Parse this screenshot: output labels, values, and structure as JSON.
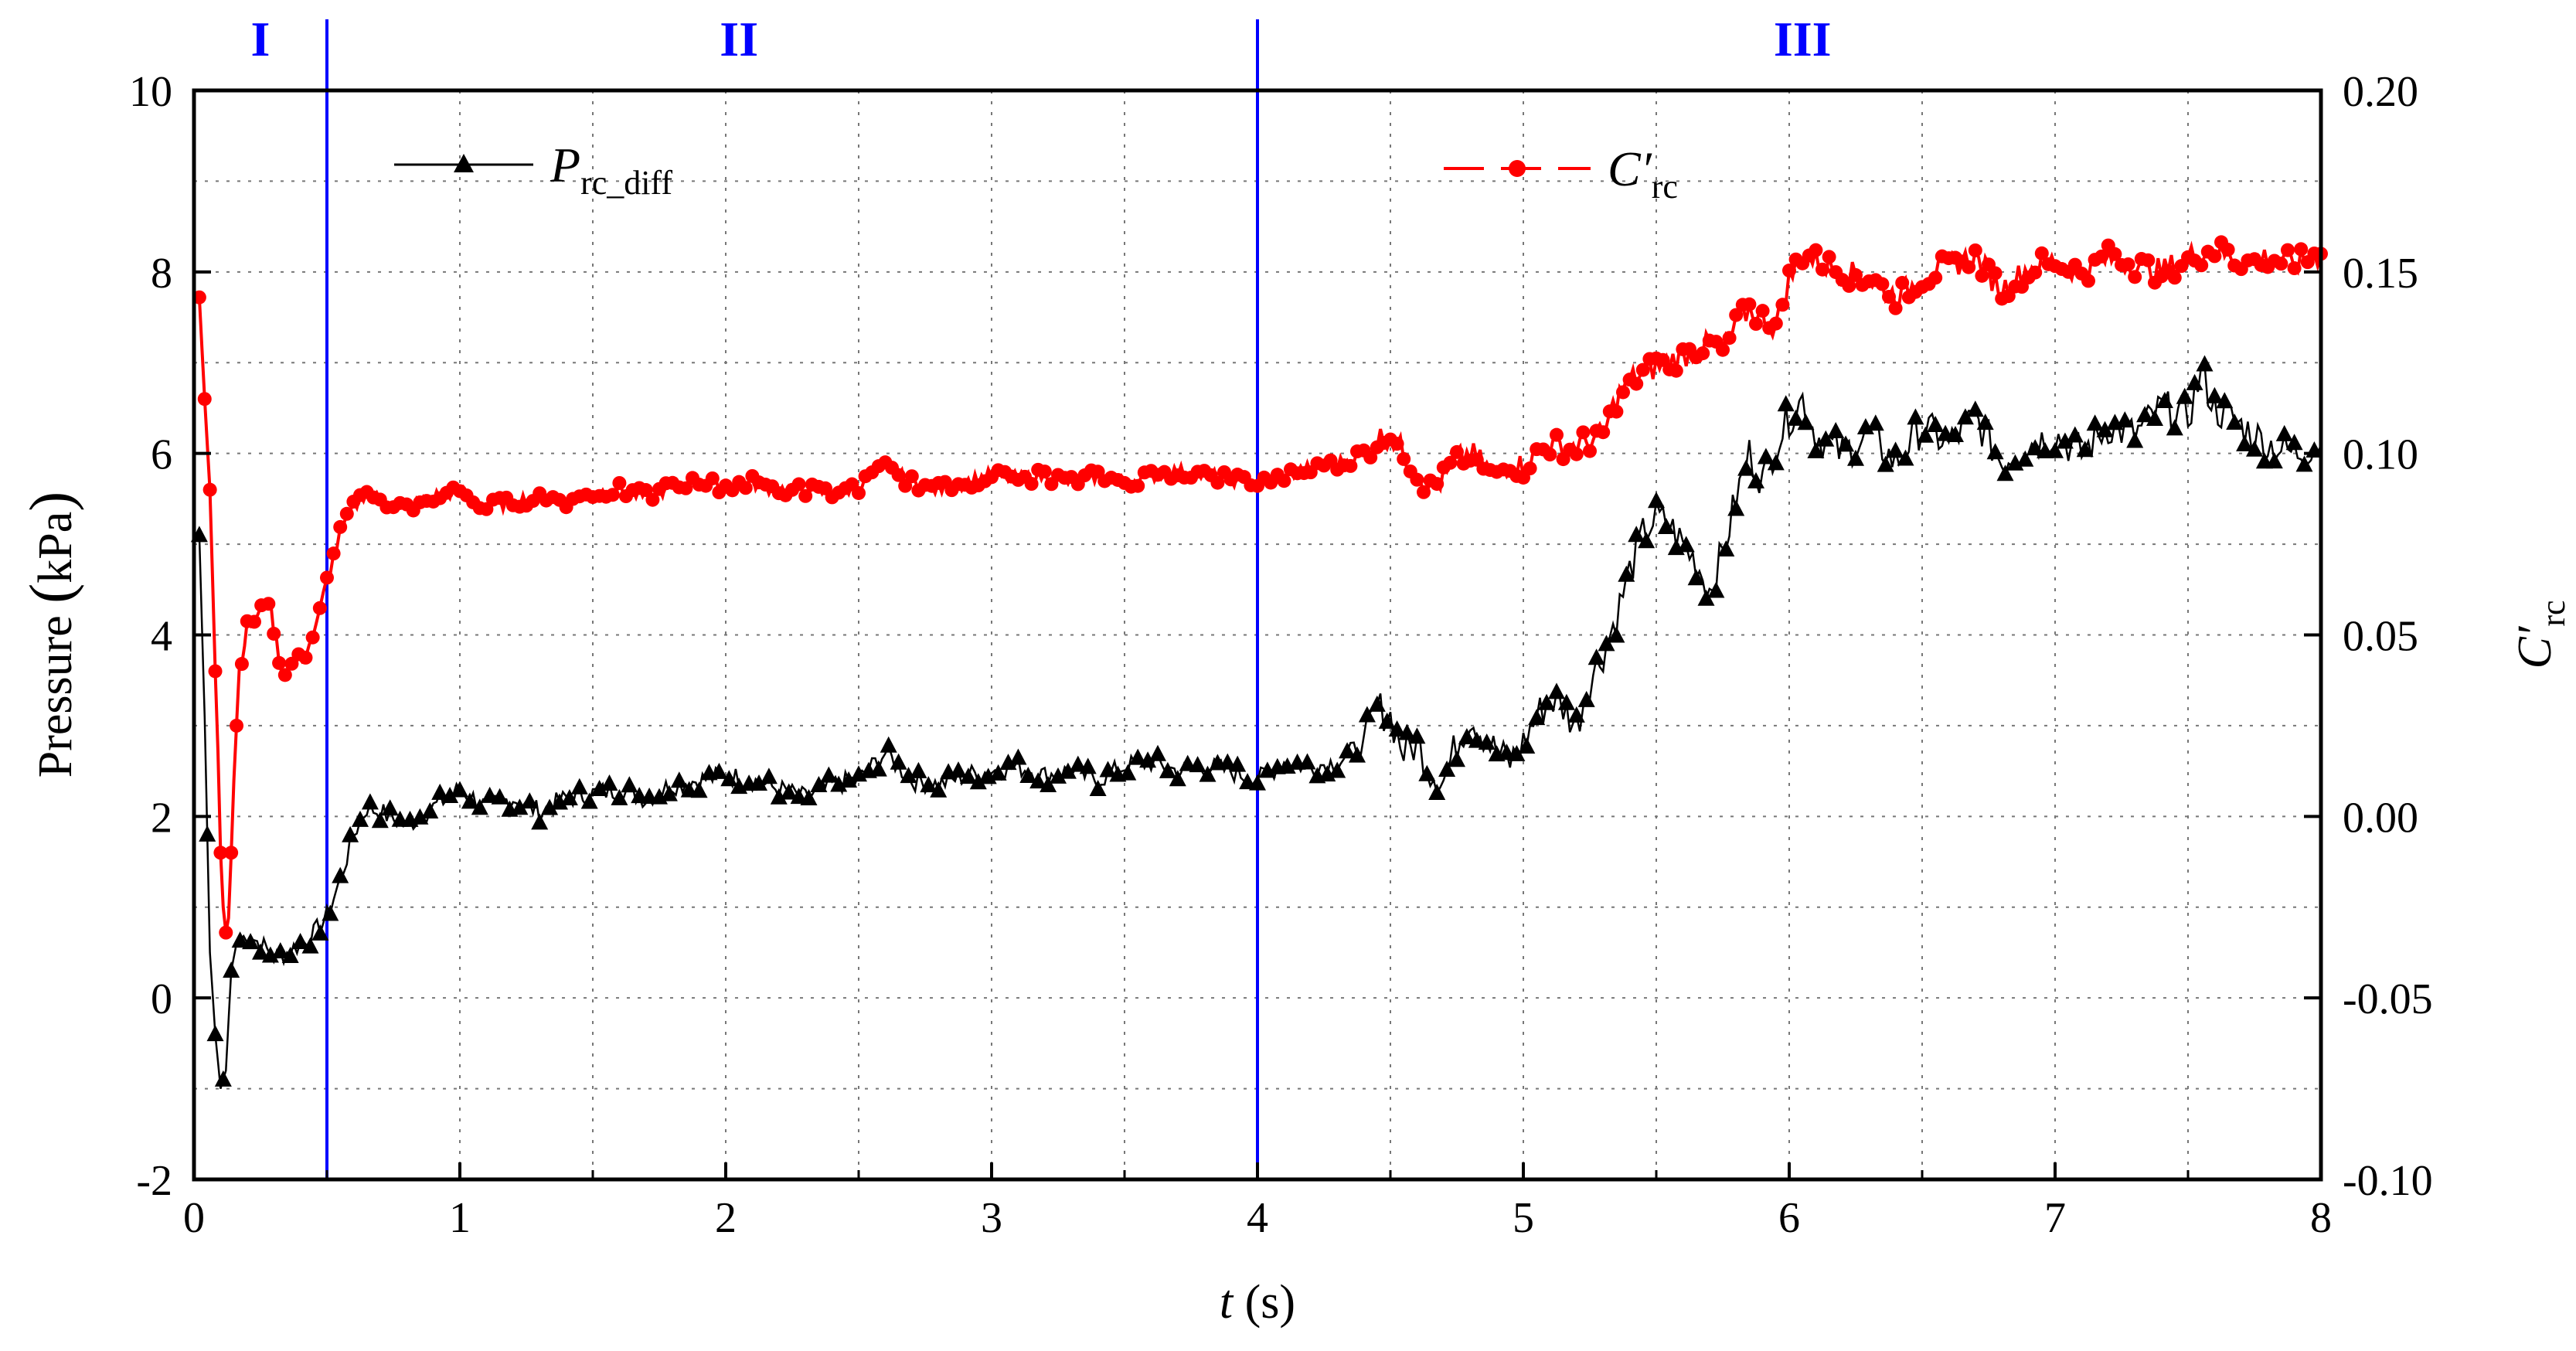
{
  "chart_data": {
    "type": "line",
    "x_axis": {
      "label_var": "t",
      "label_unit": "(s)",
      "range": [
        0,
        8
      ],
      "ticks": [
        "0",
        "1",
        "2",
        "3",
        "4",
        "5",
        "6",
        "7",
        "8"
      ]
    },
    "y_axis_left": {
      "label_a": "Pressure ",
      "label_b": "kPa",
      "range": [
        -2,
        10
      ],
      "ticks": [
        "-2",
        "0",
        "2",
        "4",
        "6",
        "8",
        "10"
      ]
    },
    "y_axis_right": {
      "label": "C′",
      "label_sub": "rc",
      "range": [
        -0.1,
        0.2
      ],
      "ticks": [
        "-0.10",
        "-0.05",
        "0.00",
        "0.05",
        "0.10",
        "0.15",
        "0.20"
      ]
    },
    "grid": true,
    "region_dividers": [
      0.5,
      4.0
    ],
    "regions": [
      {
        "label": "I",
        "x": 0.25
      },
      {
        "label": "II",
        "x": 2.05
      },
      {
        "label": "III",
        "x": 6.05
      }
    ],
    "legend": [
      {
        "name_main": "P",
        "name_sub": "rc_diff",
        "color": "#000000",
        "marker": "triangle"
      },
      {
        "name_main": "C′",
        "name_sub": "rc",
        "color": "#ff0000",
        "marker": "circle"
      }
    ],
    "series": [
      {
        "name": "P_rc_diff",
        "axis": "left",
        "color": "#000000",
        "marker": "triangle",
        "points": [
          [
            0.02,
            5.1
          ],
          [
            0.04,
            3.1
          ],
          [
            0.06,
            0.5
          ],
          [
            0.08,
            -0.4
          ],
          [
            0.1,
            -1.0
          ],
          [
            0.12,
            -0.8
          ],
          [
            0.14,
            0.3
          ],
          [
            0.16,
            0.6
          ],
          [
            0.2,
            0.7
          ],
          [
            0.25,
            0.6
          ],
          [
            0.3,
            0.45
          ],
          [
            0.35,
            0.5
          ],
          [
            0.4,
            0.6
          ],
          [
            0.45,
            0.7
          ],
          [
            0.5,
            0.9
          ],
          [
            0.55,
            1.3
          ],
          [
            0.6,
            1.8
          ],
          [
            0.65,
            2.1
          ],
          [
            0.7,
            2.05
          ],
          [
            0.8,
            1.9
          ],
          [
            0.9,
            2.1
          ],
          [
            1.0,
            2.3
          ],
          [
            1.1,
            2.1
          ],
          [
            1.2,
            2.2
          ],
          [
            1.3,
            2.05
          ],
          [
            1.4,
            2.2
          ],
          [
            1.5,
            2.25
          ],
          [
            1.6,
            2.3
          ],
          [
            1.7,
            2.2
          ],
          [
            1.8,
            2.35
          ],
          [
            1.9,
            2.4
          ],
          [
            2.0,
            2.45
          ],
          [
            2.1,
            2.4
          ],
          [
            2.2,
            2.3
          ],
          [
            2.3,
            2.2
          ],
          [
            2.4,
            2.35
          ],
          [
            2.5,
            2.4
          ],
          [
            2.6,
            2.7
          ],
          [
            2.7,
            2.4
          ],
          [
            2.8,
            2.35
          ],
          [
            2.9,
            2.45
          ],
          [
            3.0,
            2.5
          ],
          [
            3.1,
            2.55
          ],
          [
            3.2,
            2.45
          ],
          [
            3.3,
            2.5
          ],
          [
            3.4,
            2.4
          ],
          [
            3.5,
            2.55
          ],
          [
            3.6,
            2.6
          ],
          [
            3.7,
            2.5
          ],
          [
            3.8,
            2.55
          ],
          [
            3.9,
            2.5
          ],
          [
            4.0,
            2.4
          ],
          [
            4.1,
            2.6
          ],
          [
            4.2,
            2.55
          ],
          [
            4.3,
            2.6
          ],
          [
            4.4,
            2.8
          ],
          [
            4.45,
            3.2
          ],
          [
            4.5,
            3.1
          ],
          [
            4.55,
            2.7
          ],
          [
            4.6,
            2.8
          ],
          [
            4.65,
            2.5
          ],
          [
            4.7,
            2.4
          ],
          [
            4.75,
            2.8
          ],
          [
            4.8,
            3.1
          ],
          [
            4.85,
            2.9
          ],
          [
            4.9,
            2.7
          ],
          [
            4.95,
            2.6
          ],
          [
            5.0,
            2.8
          ],
          [
            5.05,
            3.1
          ],
          [
            5.1,
            3.3
          ],
          [
            5.15,
            3.2
          ],
          [
            5.2,
            3.0
          ],
          [
            5.25,
            3.5
          ],
          [
            5.3,
            3.8
          ],
          [
            5.35,
            4.2
          ],
          [
            5.4,
            4.7
          ],
          [
            5.45,
            5.1
          ],
          [
            5.5,
            5.3
          ],
          [
            5.55,
            5.2
          ],
          [
            5.6,
            5.0
          ],
          [
            5.65,
            4.8
          ],
          [
            5.7,
            4.5
          ],
          [
            5.75,
            4.9
          ],
          [
            5.8,
            5.5
          ],
          [
            5.85,
            6.0
          ],
          [
            5.9,
            5.7
          ],
          [
            5.95,
            6.1
          ],
          [
            6.0,
            6.4
          ],
          [
            6.05,
            6.6
          ],
          [
            6.1,
            6.2
          ],
          [
            6.2,
            6.0
          ],
          [
            6.3,
            6.2
          ],
          [
            6.4,
            5.9
          ],
          [
            6.5,
            6.3
          ],
          [
            6.6,
            6.1
          ],
          [
            6.7,
            6.4
          ],
          [
            6.8,
            5.9
          ],
          [
            6.9,
            6.1
          ],
          [
            7.0,
            6.2
          ],
          [
            7.1,
            6.0
          ],
          [
            7.2,
            6.3
          ],
          [
            7.3,
            6.2
          ],
          [
            7.4,
            6.5
          ],
          [
            7.5,
            6.4
          ],
          [
            7.55,
            6.9
          ],
          [
            7.6,
            6.5
          ],
          [
            7.7,
            6.3
          ],
          [
            7.8,
            6.1
          ],
          [
            7.9,
            6.0
          ],
          [
            8.0,
            6.1
          ]
        ]
      },
      {
        "name": "C'_rc",
        "axis": "right",
        "color": "#ff0000",
        "marker": "circle",
        "points": [
          [
            0.02,
            0.143
          ],
          [
            0.04,
            0.115
          ],
          [
            0.06,
            0.09
          ],
          [
            0.08,
            0.04
          ],
          [
            0.09,
            0.018
          ],
          [
            0.1,
            -0.01
          ],
          [
            0.11,
            -0.025
          ],
          [
            0.12,
            -0.032
          ],
          [
            0.13,
            -0.028
          ],
          [
            0.14,
            -0.01
          ],
          [
            0.15,
            0.01
          ],
          [
            0.17,
            0.04
          ],
          [
            0.2,
            0.052
          ],
          [
            0.24,
            0.055
          ],
          [
            0.28,
            0.06
          ],
          [
            0.3,
            0.052
          ],
          [
            0.33,
            0.04
          ],
          [
            0.38,
            0.042
          ],
          [
            0.42,
            0.045
          ],
          [
            0.46,
            0.052
          ],
          [
            0.5,
            0.065
          ],
          [
            0.55,
            0.078
          ],
          [
            0.6,
            0.085
          ],
          [
            0.65,
            0.09
          ],
          [
            0.7,
            0.087
          ],
          [
            0.8,
            0.085
          ],
          [
            0.9,
            0.088
          ],
          [
            1.0,
            0.09
          ],
          [
            1.1,
            0.085
          ],
          [
            1.2,
            0.087
          ],
          [
            1.3,
            0.088
          ],
          [
            1.4,
            0.087
          ],
          [
            1.5,
            0.089
          ],
          [
            1.6,
            0.09
          ],
          [
            1.7,
            0.088
          ],
          [
            1.8,
            0.091
          ],
          [
            1.9,
            0.092
          ],
          [
            2.0,
            0.091
          ],
          [
            2.1,
            0.092
          ],
          [
            2.2,
            0.09
          ],
          [
            2.3,
            0.09
          ],
          [
            2.4,
            0.089
          ],
          [
            2.5,
            0.091
          ],
          [
            2.6,
            0.096
          ],
          [
            2.7,
            0.092
          ],
          [
            2.8,
            0.09
          ],
          [
            2.9,
            0.092
          ],
          [
            3.0,
            0.094
          ],
          [
            3.1,
            0.093
          ],
          [
            3.2,
            0.094
          ],
          [
            3.3,
            0.092
          ],
          [
            3.4,
            0.094
          ],
          [
            3.5,
            0.092
          ],
          [
            3.6,
            0.094
          ],
          [
            3.7,
            0.095
          ],
          [
            3.8,
            0.094
          ],
          [
            3.9,
            0.093
          ],
          [
            4.0,
            0.092
          ],
          [
            4.1,
            0.094
          ],
          [
            4.2,
            0.096
          ],
          [
            4.3,
            0.097
          ],
          [
            4.4,
            0.1
          ],
          [
            4.45,
            0.104
          ],
          [
            4.5,
            0.105
          ],
          [
            4.55,
            0.1
          ],
          [
            4.6,
            0.095
          ],
          [
            4.65,
            0.09
          ],
          [
            4.7,
            0.093
          ],
          [
            4.75,
            0.098
          ],
          [
            4.8,
            0.1
          ],
          [
            4.85,
            0.097
          ],
          [
            4.9,
            0.093
          ],
          [
            4.95,
            0.098
          ],
          [
            5.0,
            0.096
          ],
          [
            5.05,
            0.1
          ],
          [
            5.1,
            0.102
          ],
          [
            5.2,
            0.102
          ],
          [
            5.3,
            0.105
          ],
          [
            5.35,
            0.115
          ],
          [
            5.4,
            0.12
          ],
          [
            5.5,
            0.124
          ],
          [
            5.6,
            0.127
          ],
          [
            5.7,
            0.13
          ],
          [
            5.75,
            0.128
          ],
          [
            5.8,
            0.135
          ],
          [
            5.85,
            0.14
          ],
          [
            5.9,
            0.137
          ],
          [
            5.95,
            0.135
          ],
          [
            6.0,
            0.148
          ],
          [
            6.05,
            0.155
          ],
          [
            6.1,
            0.153
          ],
          [
            6.2,
            0.15
          ],
          [
            6.3,
            0.148
          ],
          [
            6.4,
            0.143
          ],
          [
            6.5,
            0.148
          ],
          [
            6.6,
            0.152
          ],
          [
            6.7,
            0.154
          ],
          [
            6.8,
            0.145
          ],
          [
            6.9,
            0.151
          ],
          [
            7.0,
            0.153
          ],
          [
            7.1,
            0.15
          ],
          [
            7.2,
            0.154
          ],
          [
            7.3,
            0.152
          ],
          [
            7.4,
            0.15
          ],
          [
            7.5,
            0.154
          ],
          [
            7.6,
            0.156
          ],
          [
            7.7,
            0.153
          ],
          [
            7.8,
            0.154
          ],
          [
            7.9,
            0.152
          ],
          [
            8.0,
            0.155
          ]
        ]
      }
    ]
  }
}
